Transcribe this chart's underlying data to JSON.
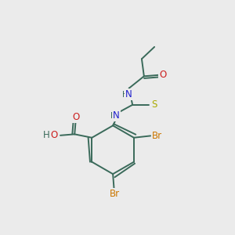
{
  "bg_color": "#ebebeb",
  "bond_color": "#3a6a5a",
  "N_color": "#2020cc",
  "O_color": "#cc2020",
  "S_color": "#aaaa00",
  "Br_color": "#cc7700",
  "figsize": [
    3.0,
    3.0
  ],
  "dpi": 100,
  "xlim": [
    0,
    10
  ],
  "ylim": [
    0,
    10
  ]
}
